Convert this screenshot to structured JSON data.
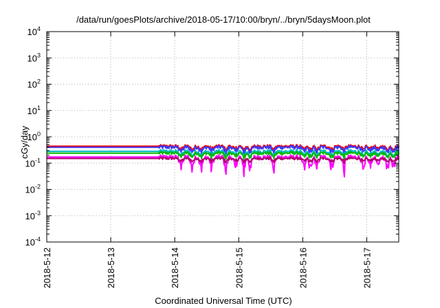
{
  "chart_data": {
    "type": "line",
    "title": "/data/run/goesPlots/archive/2018-05-17/10:00/bryn/../bryn/5daysMoon.plot",
    "xlabel": "Coordinated Universal Time (UTC)",
    "ylabel": "cGy/day",
    "yscale": "log",
    "ylim": [
      0.0001,
      10000
    ],
    "xlim": [
      0,
      5.5
    ],
    "x_unit": "days since 2018-5-12 00:00 UTC",
    "grid": true,
    "yticks": [
      {
        "value": 0.0001,
        "base": "10",
        "exp": "-4"
      },
      {
        "value": 0.001,
        "base": "10",
        "exp": "-3"
      },
      {
        "value": 0.01,
        "base": "10",
        "exp": "-2"
      },
      {
        "value": 0.1,
        "base": "10",
        "exp": "-1"
      },
      {
        "value": 1,
        "base": "10",
        "exp": "0"
      },
      {
        "value": 10,
        "base": "10",
        "exp": "1"
      },
      {
        "value": 100,
        "base": "10",
        "exp": "2"
      },
      {
        "value": 1000,
        "base": "10",
        "exp": "3"
      },
      {
        "value": 10000,
        "base": "10",
        "exp": "4"
      }
    ],
    "xticks": [
      {
        "value": 0,
        "label": "2018-5-12"
      },
      {
        "value": 1,
        "label": "2018-5-13"
      },
      {
        "value": 2,
        "label": "2018-5-14"
      },
      {
        "value": 3,
        "label": "2018-5-15"
      },
      {
        "value": 4,
        "label": "2018-5-16"
      },
      {
        "value": 5,
        "label": "2018-5-17"
      }
    ],
    "series": [
      {
        "color": "#ff0000",
        "base": 0.44,
        "dip": 0.35,
        "noise": 0.06
      },
      {
        "color": "#3a3aff",
        "base": 0.4,
        "dip": 0.45,
        "noise": 0.07
      },
      {
        "color": "#00bcbc",
        "base": 0.28,
        "dip": 0.45,
        "noise": 0.07
      },
      {
        "color": "#00b800",
        "base": 0.24,
        "dip": 0.4,
        "noise": 0.06
      },
      {
        "color": "#ff00ff",
        "base": 0.17,
        "dip": 0.85,
        "noise": 0.08
      },
      {
        "color": "#b00070",
        "base": 0.15,
        "dip": 0.3,
        "noise": 0.05
      }
    ],
    "flat_until": 1.75,
    "dip_days": [
      2.1,
      2.27,
      2.42,
      2.58,
      2.8,
      2.95,
      3.08,
      3.18,
      3.55,
      4.02,
      4.12,
      4.22,
      4.45,
      4.65,
      4.95,
      5.05,
      5.18,
      5.32,
      5.42
    ]
  }
}
